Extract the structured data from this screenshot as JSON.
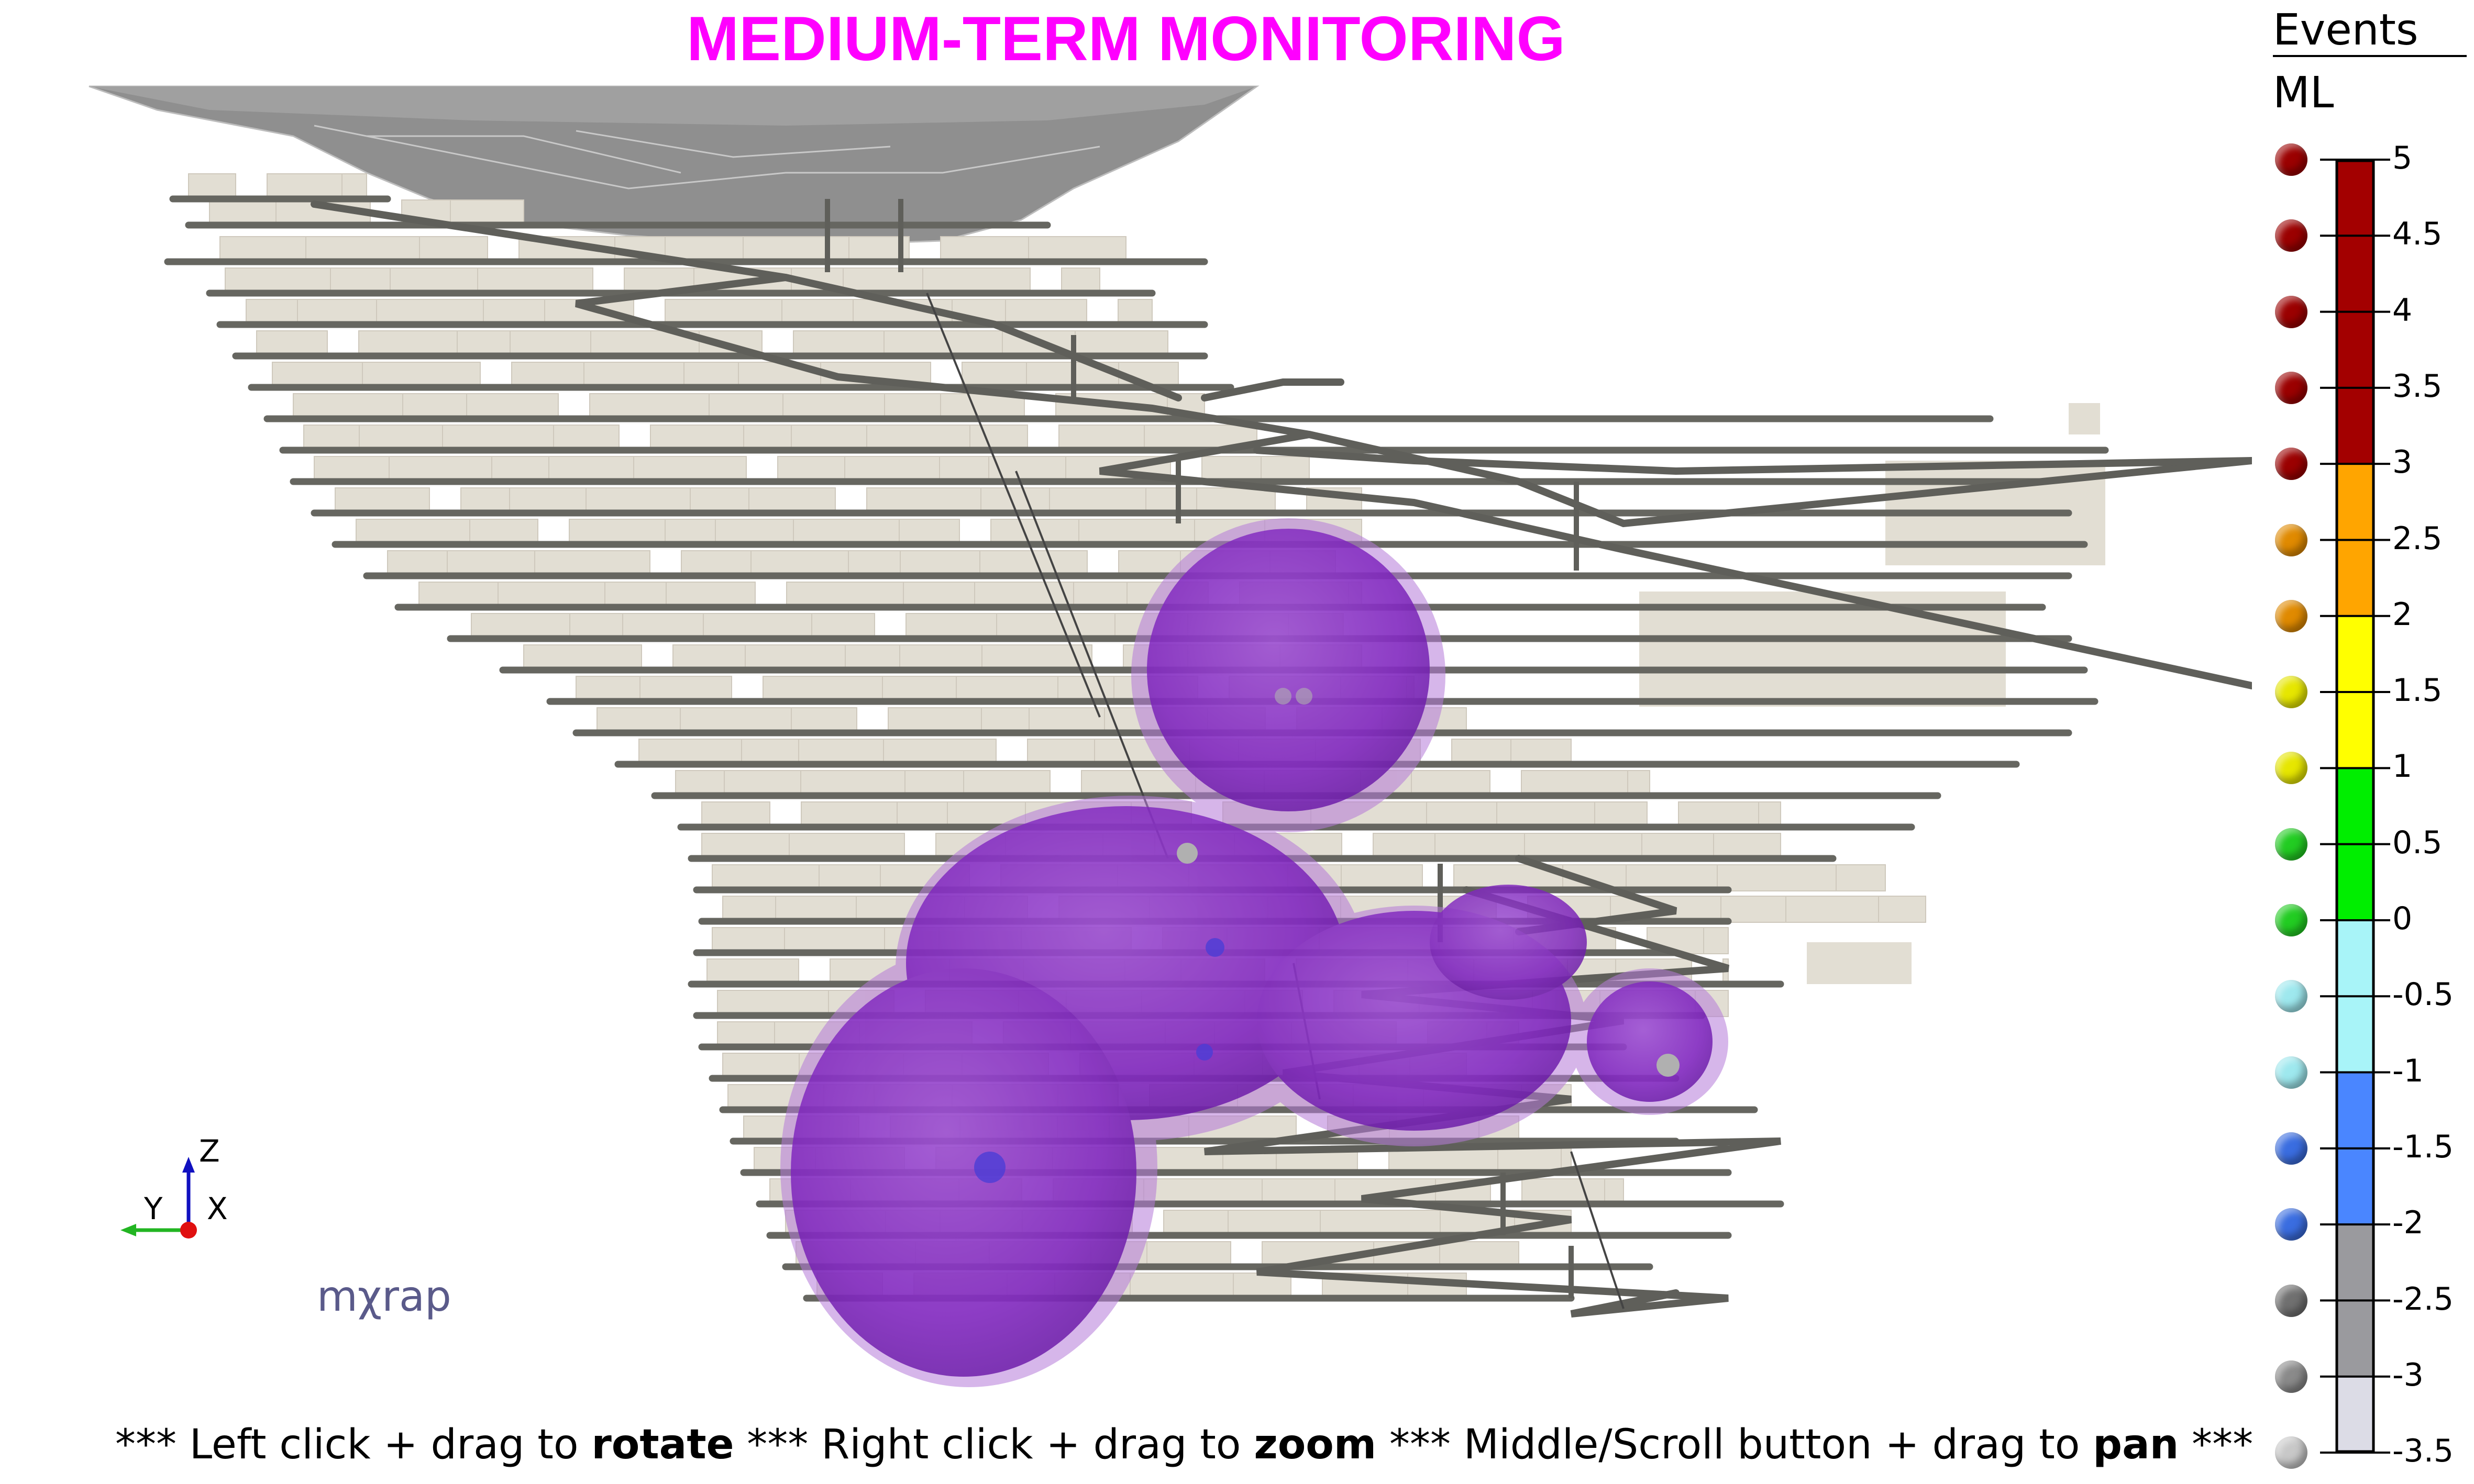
{
  "title": "MEDIUM-TERM MONITORING",
  "legend": {
    "events_label": "Events",
    "ml_label": "ML",
    "ticks": [
      "5",
      "4.5",
      "4",
      "3.5",
      "3",
      "2.5",
      "2",
      "1.5",
      "1",
      "0.5",
      "0",
      "-0.5",
      "-1",
      "-1.5",
      "-2",
      "-2.5",
      "-3",
      "-3.5"
    ],
    "dot_colors": [
      "#9b0000",
      "#9b0000",
      "#9b0000",
      "#9b0000",
      "#9b0000",
      "#e08a00",
      "#e08a00",
      "#e6e600",
      "#e6e600",
      "#22cc22",
      "#22cc22",
      "#9ee8ee",
      "#9ee8ee",
      "#3a6de0",
      "#3a6de0",
      "#707070",
      "#8a8a8a",
      "#c8c8c8"
    ],
    "bands": [
      {
        "from": 3,
        "to": 5,
        "color": "#a30000"
      },
      {
        "from": 2,
        "to": 3,
        "color": "#ffa500"
      },
      {
        "from": 1,
        "to": 2,
        "color": "#ffff00"
      },
      {
        "from": 0,
        "to": 1,
        "color": "#00ee00"
      },
      {
        "from": -1,
        "to": 0,
        "color": "#a8f4f8"
      },
      {
        "from": -2,
        "to": -1,
        "color": "#4a86ff"
      },
      {
        "from": -3,
        "to": -2,
        "color": "#9a9a9e"
      },
      {
        "from": -3.5,
        "to": -3,
        "color": "#dcdce6"
      }
    ]
  },
  "axes_triad": {
    "z": "Z",
    "y": "Y",
    "x": "X"
  },
  "logo": "mχrap",
  "hint": {
    "part1": "*** Left click + drag to ",
    "bold1": "rotate",
    "part2": " *** Right click + drag to ",
    "bold2": "zoom",
    "part3": " *** Middle/Scroll button + drag to ",
    "bold3": "pan",
    "part4": " ***"
  },
  "colors": {
    "title": "#ff00ff",
    "tunnel": "#666660",
    "stope": "#e2ded3",
    "cloud": "#7a1fb8",
    "open_pit": "#8a8a8a"
  }
}
